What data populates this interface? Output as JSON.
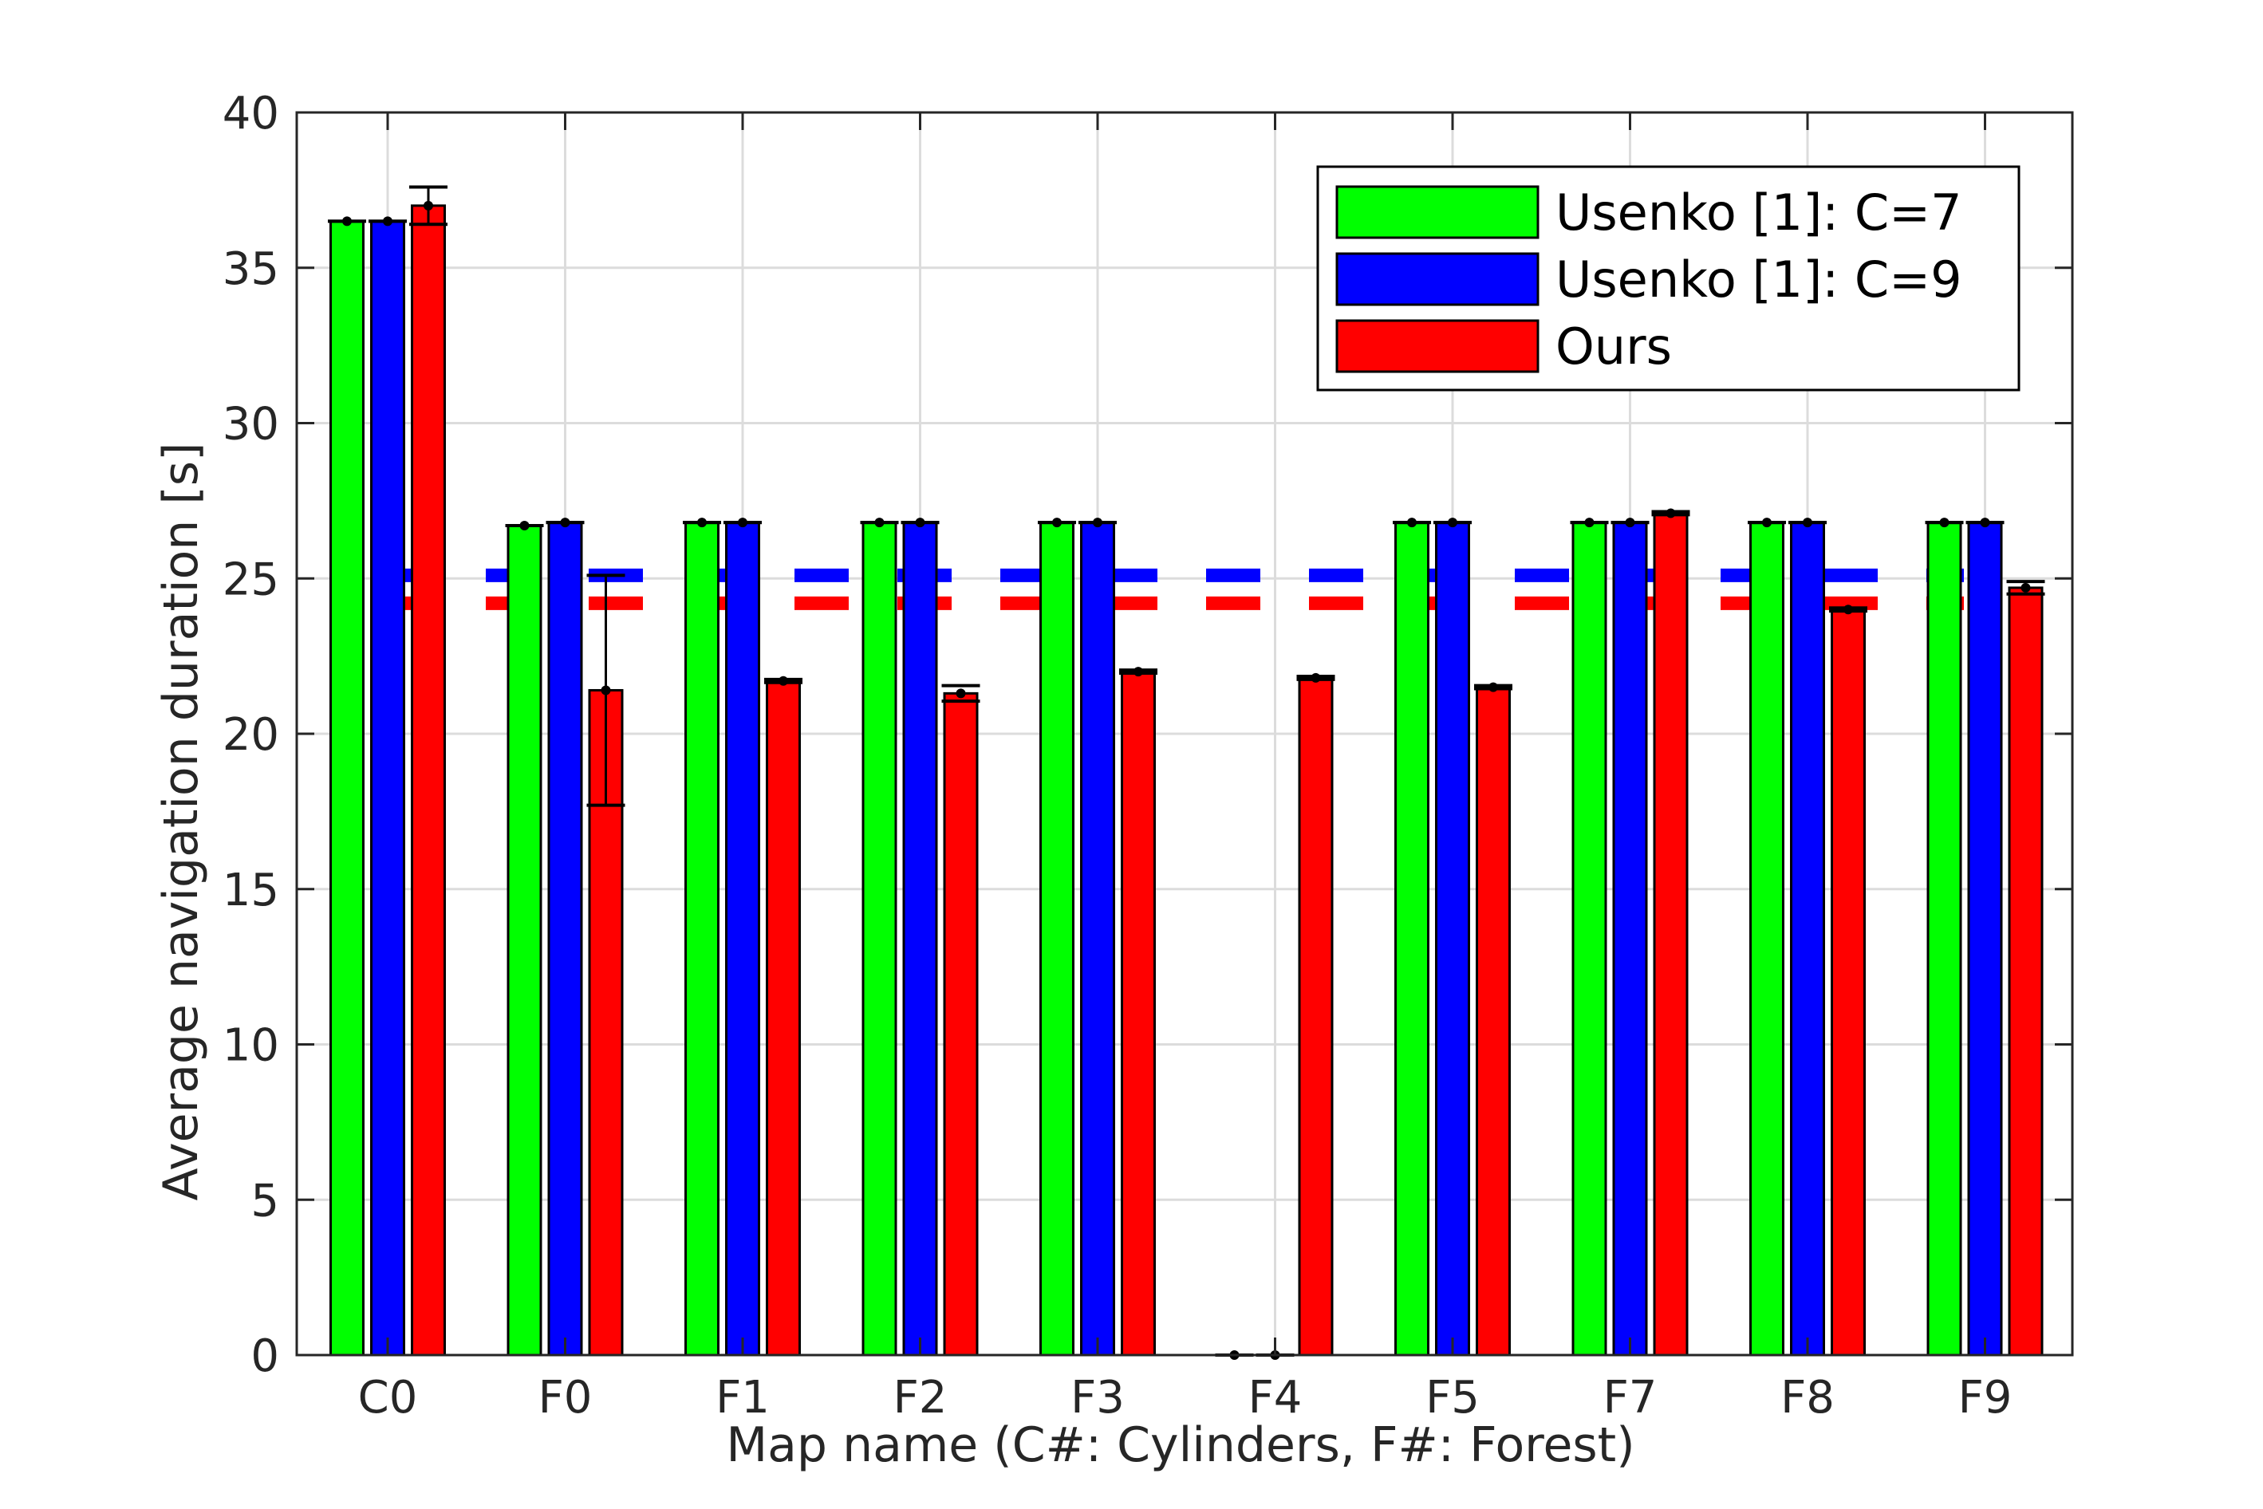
{
  "chart_data": {
    "type": "bar",
    "title": "",
    "xlabel": "Map name (C#: Cylinders, F#: Forest)",
    "ylabel": "Average navigation duration [s]",
    "categories": [
      "C0",
      "F0",
      "F1",
      "F2",
      "F3",
      "F4",
      "F5",
      "F7",
      "F8",
      "F9"
    ],
    "ylim": [
      0,
      40
    ],
    "yticks": [
      "0",
      "5",
      "10",
      "15",
      "20",
      "25",
      "30",
      "35",
      "40"
    ],
    "grid": true,
    "legend_position": "top-right",
    "series": [
      {
        "name": "Usenko [1]: C=7",
        "color": "#00ff00",
        "values": [
          36.5,
          26.7,
          26.8,
          26.8,
          26.8,
          0,
          26.8,
          26.8,
          26.8,
          26.8
        ],
        "error": [
          0,
          0,
          0,
          0,
          0,
          0,
          0,
          0,
          0,
          0
        ]
      },
      {
        "name": "Usenko [1]: C=9",
        "color": "#0000ff",
        "values": [
          36.5,
          26.8,
          26.8,
          26.8,
          26.8,
          0,
          26.8,
          26.8,
          26.8,
          26.8
        ],
        "error": [
          0,
          0,
          0,
          0,
          0,
          0,
          0,
          0,
          0,
          0
        ]
      },
      {
        "name": "Ours",
        "color": "#ff0000",
        "values": [
          37.0,
          21.4,
          21.7,
          21.3,
          22.0,
          21.8,
          21.5,
          27.1,
          24.0,
          24.7
        ],
        "error": [
          0.6,
          3.7,
          0.05,
          0.25,
          0.05,
          0.05,
          0.05,
          0.05,
          0.05,
          0.2
        ]
      }
    ],
    "reference_lines": [
      {
        "color": "#0000ff",
        "value": 25.1,
        "style": "dashed"
      },
      {
        "color": "#ff0000",
        "value": 24.2,
        "style": "dashed"
      }
    ]
  }
}
